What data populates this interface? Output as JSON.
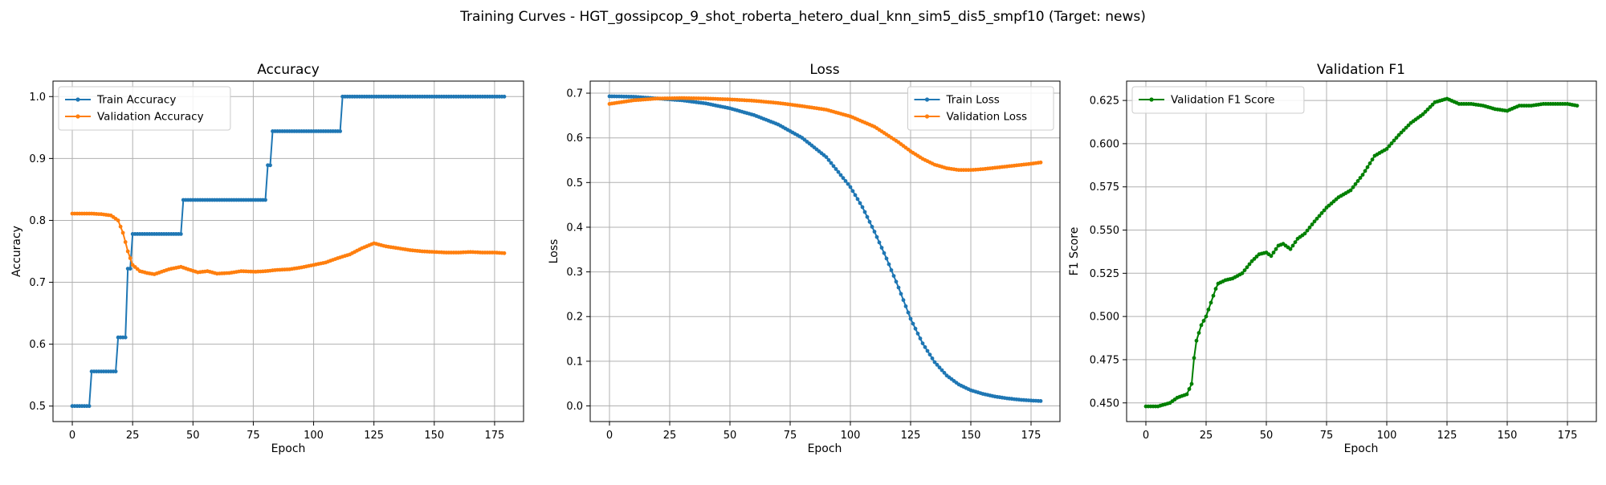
{
  "figure_title": "Training Curves - HGT_gossipcop_9_shot_roberta_hetero_dual_knn_sim5_dis5_smpf10 (Target: news)",
  "colors": {
    "train": "#1f77b4",
    "validation": "#ff7f0e",
    "f1": "#008000",
    "grid": "#b0b0b0"
  },
  "chart_data": [
    {
      "type": "line",
      "title": "Accuracy",
      "xlabel": "Epoch",
      "ylabel": "Accuracy",
      "xlim": [
        -8,
        187
      ],
      "ylim": [
        0.475,
        1.025
      ],
      "xticks": [
        0,
        25,
        50,
        75,
        100,
        125,
        150,
        175
      ],
      "yticks": [
        0.5,
        0.6,
        0.7,
        0.8,
        0.9,
        1.0
      ],
      "ytick_decimals": 1,
      "grid": true,
      "legend_position": "upper-left",
      "epochs": 180,
      "series": [
        {
          "name": "Train Accuracy",
          "color": "#1f77b4",
          "marker": true,
          "linewidth": 2,
          "keypoints": [
            [
              0,
              0.5
            ],
            [
              7,
              0.5
            ],
            [
              8,
              0.556
            ],
            [
              18,
              0.556
            ],
            [
              19,
              0.611
            ],
            [
              22,
              0.611
            ],
            [
              23,
              0.722
            ],
            [
              24,
              0.722
            ],
            [
              25,
              0.778
            ],
            [
              45,
              0.778
            ],
            [
              46,
              0.833
            ],
            [
              80,
              0.833
            ],
            [
              81,
              0.889
            ],
            [
              82,
              0.889
            ],
            [
              83,
              0.944
            ],
            [
              111,
              0.944
            ],
            [
              112,
              1.0
            ],
            [
              179,
              1.0
            ]
          ],
          "interpolation": "step"
        },
        {
          "name": "Validation Accuracy",
          "color": "#ff7f0e",
          "marker": true,
          "linewidth": 2,
          "keypoints": [
            [
              0,
              0.811
            ],
            [
              8,
              0.811
            ],
            [
              12,
              0.81
            ],
            [
              16,
              0.808
            ],
            [
              19,
              0.8
            ],
            [
              21,
              0.78
            ],
            [
              23,
              0.75
            ],
            [
              25,
              0.728
            ],
            [
              28,
              0.718
            ],
            [
              31,
              0.715
            ],
            [
              34,
              0.713
            ],
            [
              37,
              0.717
            ],
            [
              40,
              0.721
            ],
            [
              45,
              0.725
            ],
            [
              48,
              0.721
            ],
            [
              52,
              0.716
            ],
            [
              56,
              0.718
            ],
            [
              60,
              0.714
            ],
            [
              65,
              0.715
            ],
            [
              70,
              0.718
            ],
            [
              76,
              0.717
            ],
            [
              80,
              0.718
            ],
            [
              85,
              0.72
            ],
            [
              90,
              0.721
            ],
            [
              95,
              0.724
            ],
            [
              100,
              0.728
            ],
            [
              105,
              0.732
            ],
            [
              110,
              0.739
            ],
            [
              115,
              0.745
            ],
            [
              120,
              0.755
            ],
            [
              125,
              0.763
            ],
            [
              130,
              0.758
            ],
            [
              135,
              0.755
            ],
            [
              140,
              0.752
            ],
            [
              145,
              0.75
            ],
            [
              150,
              0.749
            ],
            [
              155,
              0.748
            ],
            [
              160,
              0.748
            ],
            [
              165,
              0.749
            ],
            [
              170,
              0.748
            ],
            [
              175,
              0.748
            ],
            [
              179,
              0.747
            ]
          ],
          "interpolation": "linear"
        }
      ]
    },
    {
      "type": "line",
      "title": "Loss",
      "xlabel": "Epoch",
      "ylabel": "Loss",
      "xlim": [
        -8,
        187
      ],
      "ylim": [
        -0.035,
        0.727
      ],
      "xticks": [
        0,
        25,
        50,
        75,
        100,
        125,
        150,
        175
      ],
      "yticks": [
        0.0,
        0.1,
        0.2,
        0.3,
        0.4,
        0.5,
        0.6,
        0.7
      ],
      "ytick_decimals": 1,
      "grid": true,
      "legend_position": "upper-right",
      "epochs": 180,
      "series": [
        {
          "name": "Train Loss",
          "color": "#1f77b4",
          "marker": true,
          "linewidth": 2,
          "keypoints": [
            [
              0,
              0.693
            ],
            [
              10,
              0.692
            ],
            [
              20,
              0.688
            ],
            [
              30,
              0.684
            ],
            [
              40,
              0.677
            ],
            [
              50,
              0.666
            ],
            [
              60,
              0.651
            ],
            [
              70,
              0.63
            ],
            [
              80,
              0.6
            ],
            [
              90,
              0.557
            ],
            [
              100,
              0.49
            ],
            [
              105,
              0.445
            ],
            [
              110,
              0.39
            ],
            [
              115,
              0.33
            ],
            [
              120,
              0.265
            ],
            [
              125,
              0.195
            ],
            [
              130,
              0.14
            ],
            [
              135,
              0.098
            ],
            [
              140,
              0.068
            ],
            [
              145,
              0.048
            ],
            [
              150,
              0.035
            ],
            [
              155,
              0.027
            ],
            [
              160,
              0.021
            ],
            [
              165,
              0.017
            ],
            [
              170,
              0.014
            ],
            [
              175,
              0.012
            ],
            [
              179,
              0.011
            ]
          ],
          "interpolation": "linear"
        },
        {
          "name": "Validation Loss",
          "color": "#ff7f0e",
          "marker": true,
          "linewidth": 2,
          "keypoints": [
            [
              0,
              0.676
            ],
            [
              10,
              0.684
            ],
            [
              20,
              0.688
            ],
            [
              30,
              0.689
            ],
            [
              40,
              0.688
            ],
            [
              50,
              0.686
            ],
            [
              60,
              0.683
            ],
            [
              70,
              0.678
            ],
            [
              80,
              0.671
            ],
            [
              90,
              0.663
            ],
            [
              100,
              0.648
            ],
            [
              110,
              0.625
            ],
            [
              120,
              0.59
            ],
            [
              125,
              0.57
            ],
            [
              130,
              0.553
            ],
            [
              135,
              0.54
            ],
            [
              140,
              0.532
            ],
            [
              145,
              0.528
            ],
            [
              150,
              0.528
            ],
            [
              155,
              0.53
            ],
            [
              160,
              0.533
            ],
            [
              165,
              0.536
            ],
            [
              170,
              0.539
            ],
            [
              175,
              0.542
            ],
            [
              179,
              0.545
            ]
          ],
          "interpolation": "linear"
        }
      ]
    },
    {
      "type": "line",
      "title": "Validation F1",
      "xlabel": "Epoch",
      "ylabel": "F1 Score",
      "xlim": [
        -8,
        187
      ],
      "ylim": [
        0.4392,
        0.6362
      ],
      "xticks": [
        0,
        25,
        50,
        75,
        100,
        125,
        150,
        175
      ],
      "yticks": [
        0.45,
        0.475,
        0.5,
        0.525,
        0.55,
        0.575,
        0.6,
        0.625
      ],
      "ytick_decimals": 3,
      "grid": true,
      "legend_position": "upper-left",
      "epochs": 180,
      "series": [
        {
          "name": "Validation F1 Score",
          "color": "#008000",
          "marker": true,
          "linewidth": 2,
          "keypoints": [
            [
              0,
              0.448
            ],
            [
              5,
              0.448
            ],
            [
              10,
              0.45
            ],
            [
              13,
              0.453
            ],
            [
              15,
              0.454
            ],
            [
              17,
              0.455
            ],
            [
              19,
              0.461
            ],
            [
              20,
              0.476
            ],
            [
              21,
              0.486
            ],
            [
              23,
              0.495
            ],
            [
              25,
              0.5
            ],
            [
              27,
              0.508
            ],
            [
              29,
              0.516
            ],
            [
              30,
              0.519
            ],
            [
              33,
              0.521
            ],
            [
              36,
              0.522
            ],
            [
              40,
              0.525
            ],
            [
              44,
              0.532
            ],
            [
              47,
              0.536
            ],
            [
              50,
              0.537
            ],
            [
              52,
              0.535
            ],
            [
              55,
              0.541
            ],
            [
              57,
              0.542
            ],
            [
              60,
              0.539
            ],
            [
              63,
              0.545
            ],
            [
              66,
              0.548
            ],
            [
              70,
              0.555
            ],
            [
              75,
              0.563
            ],
            [
              80,
              0.569
            ],
            [
              85,
              0.573
            ],
            [
              90,
              0.582
            ],
            [
              95,
              0.593
            ],
            [
              100,
              0.597
            ],
            [
              105,
              0.605
            ],
            [
              110,
              0.612
            ],
            [
              115,
              0.617
            ],
            [
              120,
              0.624
            ],
            [
              125,
              0.626
            ],
            [
              130,
              0.623
            ],
            [
              135,
              0.623
            ],
            [
              140,
              0.622
            ],
            [
              145,
              0.62
            ],
            [
              150,
              0.619
            ],
            [
              155,
              0.622
            ],
            [
              160,
              0.622
            ],
            [
              165,
              0.623
            ],
            [
              170,
              0.623
            ],
            [
              175,
              0.623
            ],
            [
              179,
              0.622
            ]
          ],
          "interpolation": "linear"
        }
      ]
    }
  ]
}
